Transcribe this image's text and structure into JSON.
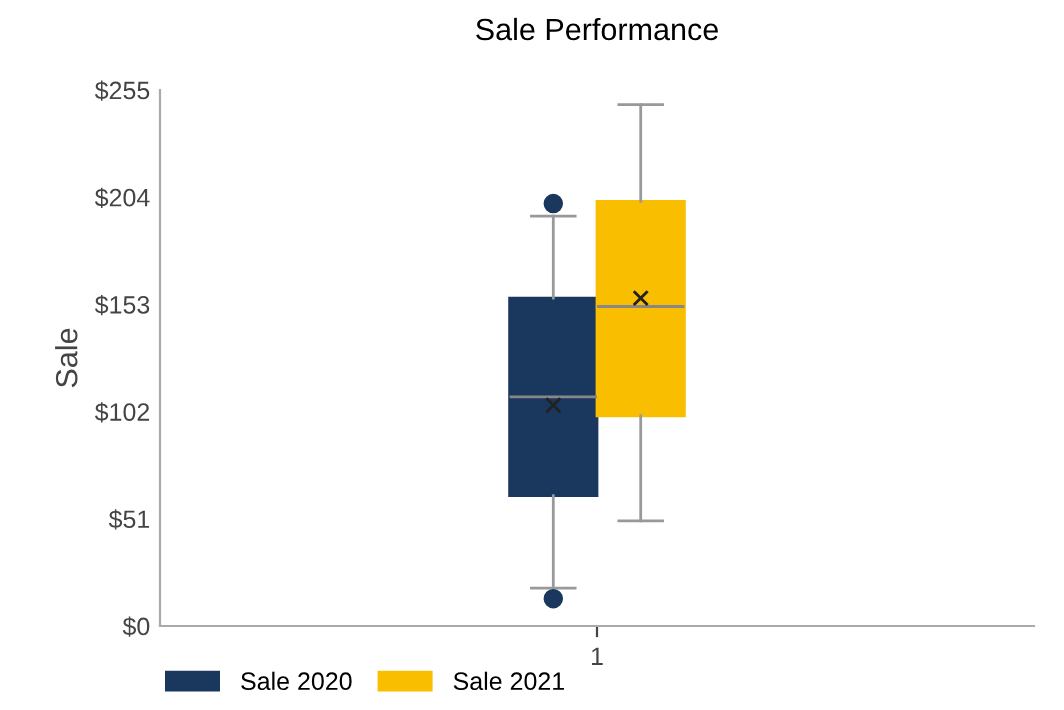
{
  "chart_data": {
    "type": "box",
    "title": "Sale Performance",
    "ylabel": "Sale",
    "categories": [
      "1"
    ],
    "series": [
      {
        "name": "Sale 2020",
        "color": "#1a375e",
        "boxes": [
          {
            "low": 18,
            "q1": 62,
            "median": 109,
            "q3": 156,
            "high": 195,
            "mean": 105,
            "outliers": [
              201,
              13
            ]
          }
        ]
      },
      {
        "name": "Sale 2021",
        "color": "#f9be00",
        "boxes": [
          {
            "low": 50,
            "q1": 100,
            "median": 152,
            "q3": 202,
            "high": 248,
            "mean": 156
          }
        ]
      }
    ],
    "ylim": [
      0,
      255
    ],
    "yticks": [
      {
        "value": 0,
        "label": "$0"
      },
      {
        "value": 51,
        "label": "$51"
      },
      {
        "value": 102,
        "label": "$102"
      },
      {
        "value": 153,
        "label": "$153"
      },
      {
        "value": 204,
        "label": "$204"
      },
      {
        "value": 255,
        "label": "$255"
      }
    ],
    "grid": false,
    "legend": "bottom left"
  }
}
